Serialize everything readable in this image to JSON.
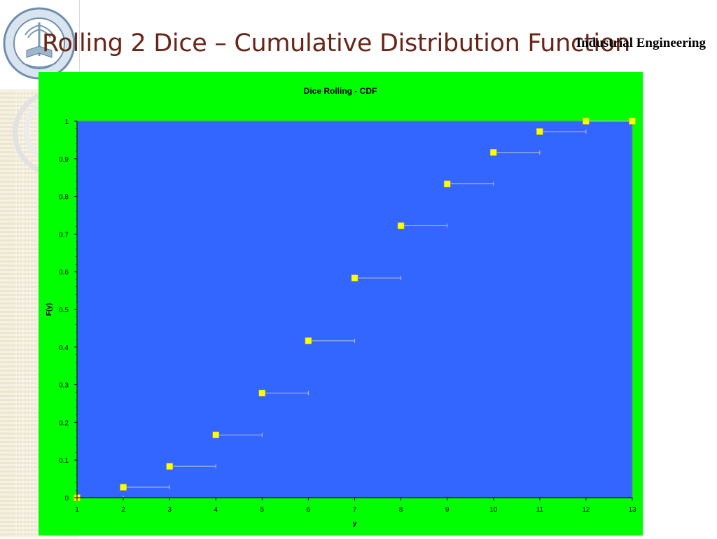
{
  "slide": {
    "title": "Rolling 2 Dice – Cumulative Distribution Function",
    "department": "Industrial Engineering",
    "logo_icon": "university-seal-icon"
  },
  "colors": {
    "panel_bg": "#00ff00",
    "plot_bg": "#3366ff",
    "marker": "#ffff00",
    "step_line": "#c0c0c0",
    "title_color": "#6b2418"
  },
  "chart_data": {
    "type": "scatter",
    "title": "Dice Rolling - CDF",
    "xlabel": "y",
    "ylabel": "F(y)",
    "xlim": [
      1,
      13
    ],
    "ylim": [
      0,
      1
    ],
    "x_ticks": [
      "1",
      "2",
      "3",
      "4",
      "5",
      "6",
      "7",
      "8",
      "9",
      "10",
      "11",
      "12",
      "13"
    ],
    "y_ticks": [
      "0",
      "0.1",
      "0.2",
      "0.3",
      "0.4",
      "0.5",
      "0.6",
      "0.7",
      "0.8",
      "0.9",
      "1"
    ],
    "grid": false,
    "legend": "none",
    "points": [
      {
        "x": 1,
        "y": 0
      },
      {
        "x": 2,
        "y": 0.0278
      },
      {
        "x": 3,
        "y": 0.0833
      },
      {
        "x": 4,
        "y": 0.1667
      },
      {
        "x": 5,
        "y": 0.2778
      },
      {
        "x": 6,
        "y": 0.4167
      },
      {
        "x": 7,
        "y": 0.5833
      },
      {
        "x": 8,
        "y": 0.7222
      },
      {
        "x": 9,
        "y": 0.8333
      },
      {
        "x": 10,
        "y": 0.9167
      },
      {
        "x": 11,
        "y": 0.9722
      },
      {
        "x": 12,
        "y": 1
      },
      {
        "x": 13,
        "y": 1
      }
    ]
  }
}
